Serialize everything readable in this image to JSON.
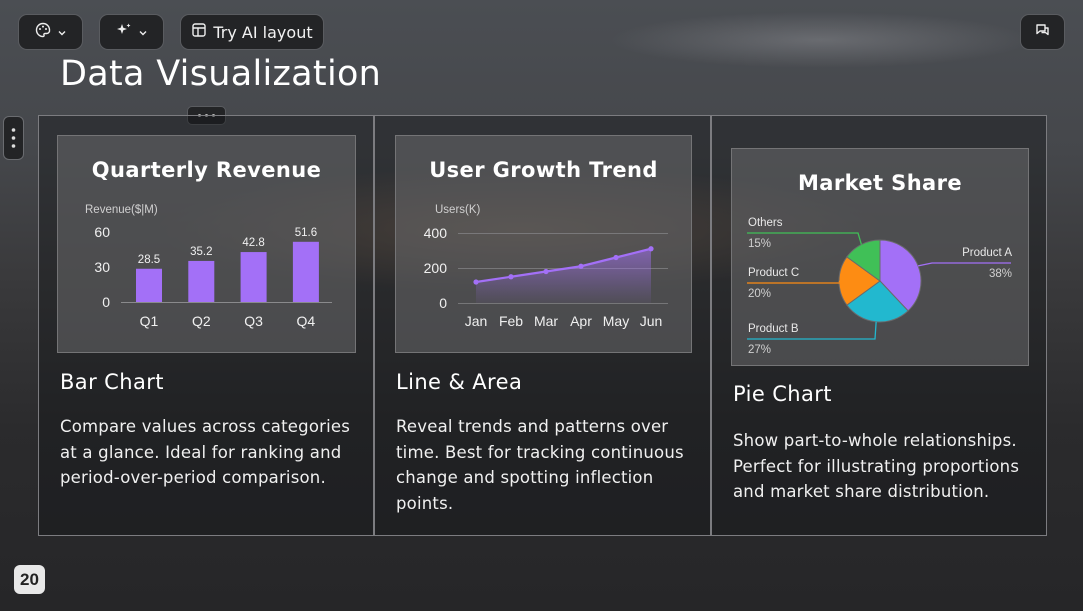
{
  "toolbar": {
    "theme_icon": "palette-icon",
    "ai_icon": "sparkle-icon",
    "ai_layout_label": "Try AI layout",
    "comment_icon": "comment-icon"
  },
  "page": {
    "title": "Data Visualization",
    "page_number": "20"
  },
  "cards": [
    {
      "chart_title": "Quarterly Revenue",
      "title": "Bar Chart",
      "description": "Compare values across categories at a glance. Ideal for ranking and period-over-period comparison."
    },
    {
      "chart_title": "User Growth Trend",
      "title": "Line & Area",
      "description": "Reveal trends and patterns over time. Best for tracking continuous change and spotting inflection points."
    },
    {
      "chart_title": "Market Share",
      "title": "Pie Chart",
      "description": "Show part-to-whole relationships. Perfect for illustrating proportions and market share distribution."
    }
  ],
  "colors": {
    "bar": "#a370f7",
    "line": "#a370f7",
    "pie_a": "#a370f7",
    "pie_b": "#22b8cf",
    "pie_c": "#fd8c13",
    "pie_others": "#40c057"
  },
  "chart_data": [
    {
      "type": "bar",
      "title": "Quarterly Revenue",
      "ylabel": "Revenue($|M)",
      "categories": [
        "Q1",
        "Q2",
        "Q3",
        "Q4"
      ],
      "values": [
        28.5,
        35.2,
        42.8,
        51.6
      ],
      "ylim": [
        0,
        60
      ],
      "yticks": [
        0,
        30,
        60
      ]
    },
    {
      "type": "area",
      "title": "User Growth Trend",
      "ylabel": "Users(K)",
      "categories": [
        "Jan",
        "Feb",
        "Mar",
        "Apr",
        "May",
        "Jun"
      ],
      "values": [
        120,
        150,
        180,
        210,
        260,
        310
      ],
      "ylim": [
        0,
        400
      ],
      "yticks": [
        0,
        200,
        400
      ],
      "grid": true
    },
    {
      "type": "pie",
      "title": "Market Share",
      "slices": [
        {
          "label": "Product A",
          "value": 38,
          "pct": "38%"
        },
        {
          "label": "Product B",
          "value": 27,
          "pct": "27%"
        },
        {
          "label": "Product C",
          "value": 20,
          "pct": "20%"
        },
        {
          "label": "Others",
          "value": 15,
          "pct": "15%"
        }
      ]
    }
  ]
}
